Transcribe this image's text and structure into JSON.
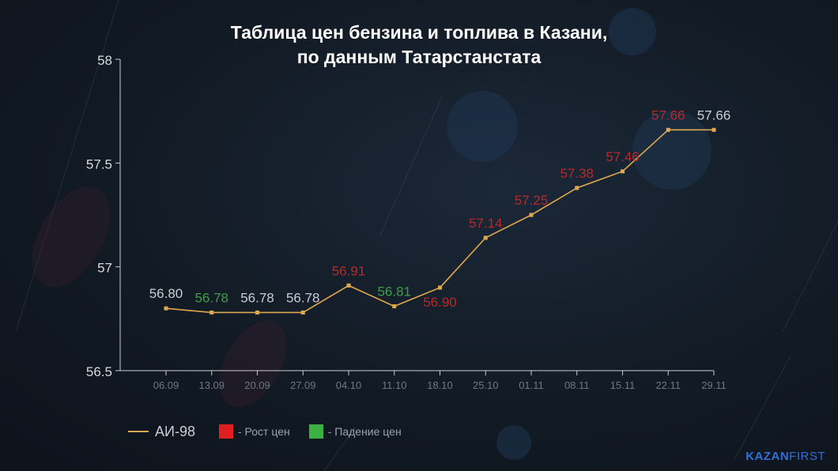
{
  "title_line1": "Таблица цен бензина и топлива в Казани,",
  "title_line2": "по данным Татарстанстата",
  "colors": {
    "line": "#e0a84e",
    "rise": "#e02020",
    "fall": "#3cb043",
    "rise_label": "#b52a2a",
    "fall_label": "#3f9e45",
    "neutral_label": "#c9ced3",
    "axis": "#c9ced3",
    "tick_label": "#6d7782"
  },
  "legend": {
    "series_label": "АИ-98",
    "rise_label": "- Рост цен",
    "fall_label": "- Падение цен"
  },
  "brand": {
    "part1": "KAZAN",
    "part2": "FIRST"
  },
  "chart_data": {
    "type": "line",
    "title": "Таблица цен бензина и топлива в Казани, по данным Татарстанстата",
    "xlabel": "",
    "ylabel": "",
    "ylim": [
      56.5,
      58
    ],
    "yticks": [
      {
        "value": 58,
        "label": "58"
      },
      {
        "value": 57.5,
        "label": "57.5"
      },
      {
        "value": 57,
        "label": "57"
      },
      {
        "value": 56.5,
        "label": "56.5"
      }
    ],
    "categories": [
      "06.09",
      "13.09",
      "20.09",
      "27.09",
      "04.10",
      "11.10",
      "18.10",
      "25.10",
      "01.11",
      "08.11",
      "15.11",
      "22.11",
      "29.11"
    ],
    "series": [
      {
        "name": "АИ-98",
        "values": [
          56.8,
          56.78,
          56.78,
          56.78,
          56.91,
          56.81,
          56.9,
          57.14,
          57.25,
          57.38,
          57.46,
          57.66,
          57.66
        ]
      }
    ],
    "data_labels": [
      {
        "text": "56.80",
        "status": "neutral",
        "pos": "above"
      },
      {
        "text": "56.78",
        "status": "fall",
        "pos": "above"
      },
      {
        "text": "56.78",
        "status": "neutral",
        "pos": "above"
      },
      {
        "text": "56.78",
        "status": "neutral",
        "pos": "above"
      },
      {
        "text": "56.91",
        "status": "rise",
        "pos": "above"
      },
      {
        "text": "56.81",
        "status": "fall",
        "pos": "above"
      },
      {
        "text": "56.90",
        "status": "rise",
        "pos": "below"
      },
      {
        "text": "57.14",
        "status": "rise",
        "pos": "above"
      },
      {
        "text": "57.25",
        "status": "rise",
        "pos": "above"
      },
      {
        "text": "57.38",
        "status": "rise",
        "pos": "above"
      },
      {
        "text": "57.46",
        "status": "rise",
        "pos": "above"
      },
      {
        "text": "57.66",
        "status": "rise",
        "pos": "above"
      },
      {
        "text": "57.66",
        "status": "neutral",
        "pos": "above"
      }
    ],
    "grid": false,
    "legend_position": "bottom-left"
  }
}
